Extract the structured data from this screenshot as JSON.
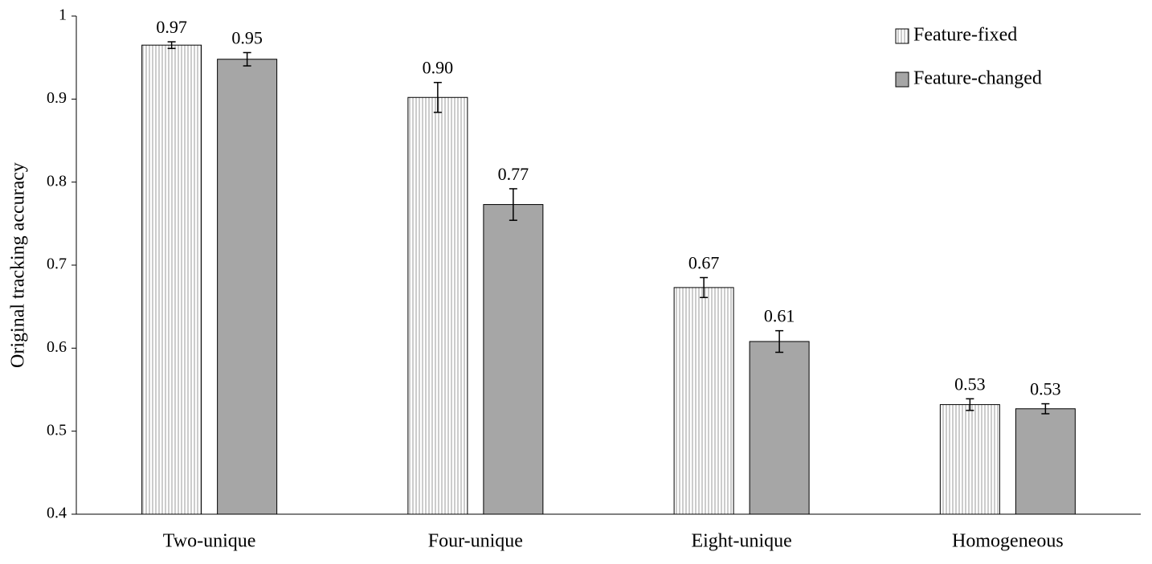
{
  "chart_data": {
    "type": "bar",
    "y_label": "Original tracking accuracy",
    "categories": [
      "Two-unique",
      "Four-unique",
      "Eight-unique",
      "Homogeneous"
    ],
    "series": [
      {
        "name": "Feature-fixed",
        "color": "#ffffff",
        "pattern": "vertical-lines",
        "values": [
          0.965,
          0.902,
          0.673,
          0.532
        ],
        "value_labels": [
          "0.97",
          "0.90",
          "0.67",
          "0.53"
        ],
        "errors": [
          0.004,
          0.018,
          0.012,
          0.007
        ]
      },
      {
        "name": "Feature-changed",
        "color": "#a6a6a6",
        "values": [
          0.948,
          0.773,
          0.608,
          0.527
        ],
        "value_labels": [
          "0.95",
          "0.77",
          "0.61",
          "0.53"
        ],
        "errors": [
          0.008,
          0.019,
          0.013,
          0.006
        ]
      }
    ],
    "ylim": [
      0.4,
      1
    ],
    "yticks": [
      0.4,
      0.5,
      0.6,
      0.7,
      0.8,
      0.9,
      1
    ],
    "legend": "upper-right"
  }
}
